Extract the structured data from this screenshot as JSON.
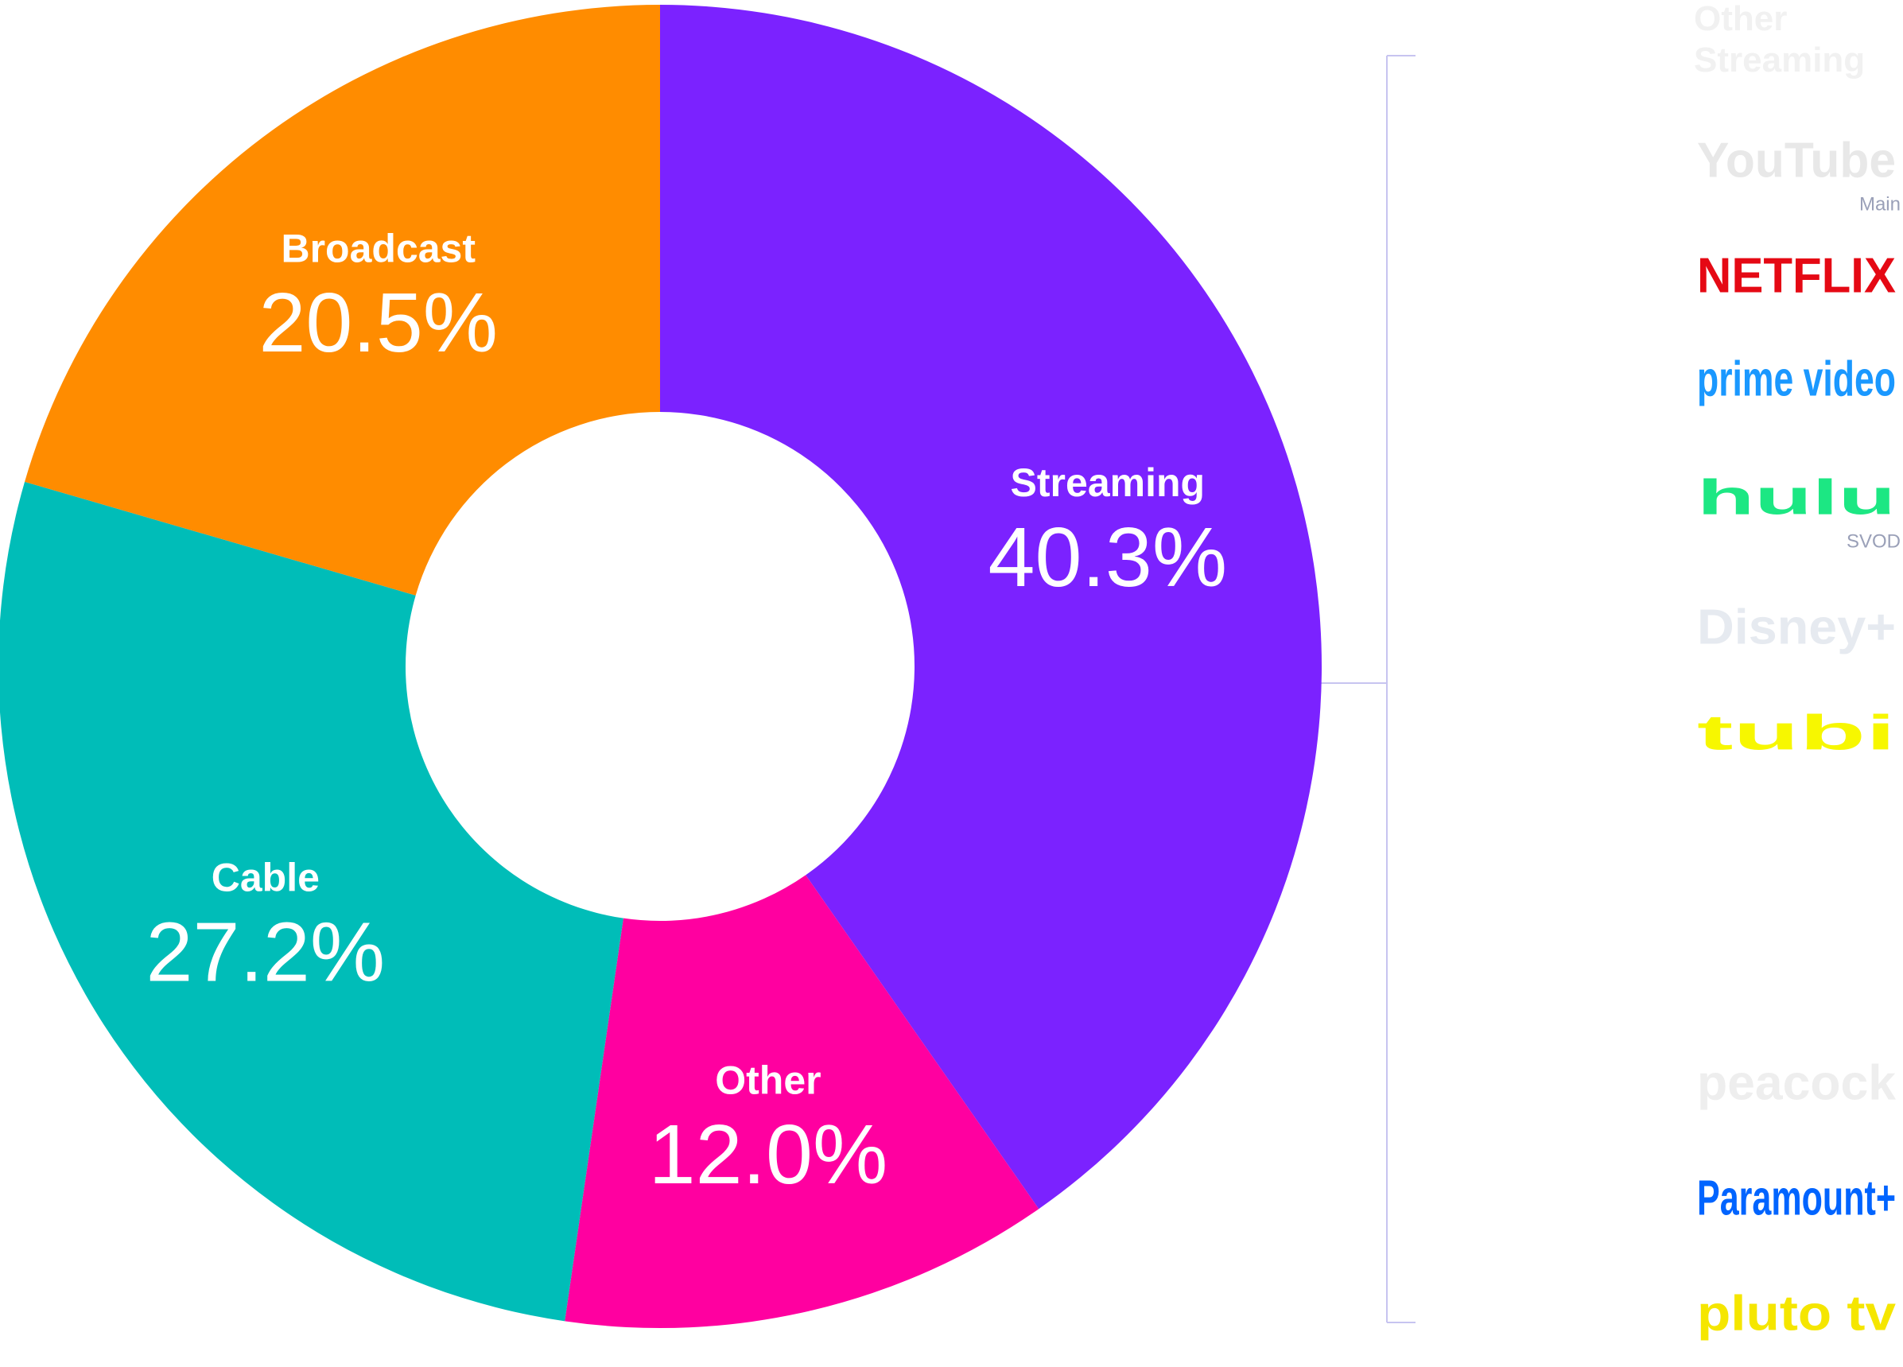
{
  "chart_data": {
    "type": "donut",
    "categories": [
      "Streaming",
      "Other",
      "Cable",
      "Broadcast"
    ],
    "values": [
      40.3,
      12.0,
      27.2,
      20.5
    ],
    "value_labels": [
      "40.3%",
      "12.0%",
      "27.2%",
      "20.5%"
    ],
    "colors": [
      "#7b22ff",
      "#ff00a0",
      "#00bdb8",
      "#ff8c00"
    ],
    "streaming_breakdown": {
      "title": "Other Streaming",
      "services": [
        {
          "label": "YouTube",
          "sublabel": "Main"
        },
        {
          "label": "NETFLIX"
        },
        {
          "label": "prime video"
        },
        {
          "label": "hulu",
          "sublabel": "SVOD"
        },
        {
          "label": "Disney+"
        },
        {
          "label": "tubi"
        },
        {
          "label": "peacock"
        },
        {
          "label": "Paramount+"
        },
        {
          "label": "pluto tv"
        }
      ]
    }
  }
}
